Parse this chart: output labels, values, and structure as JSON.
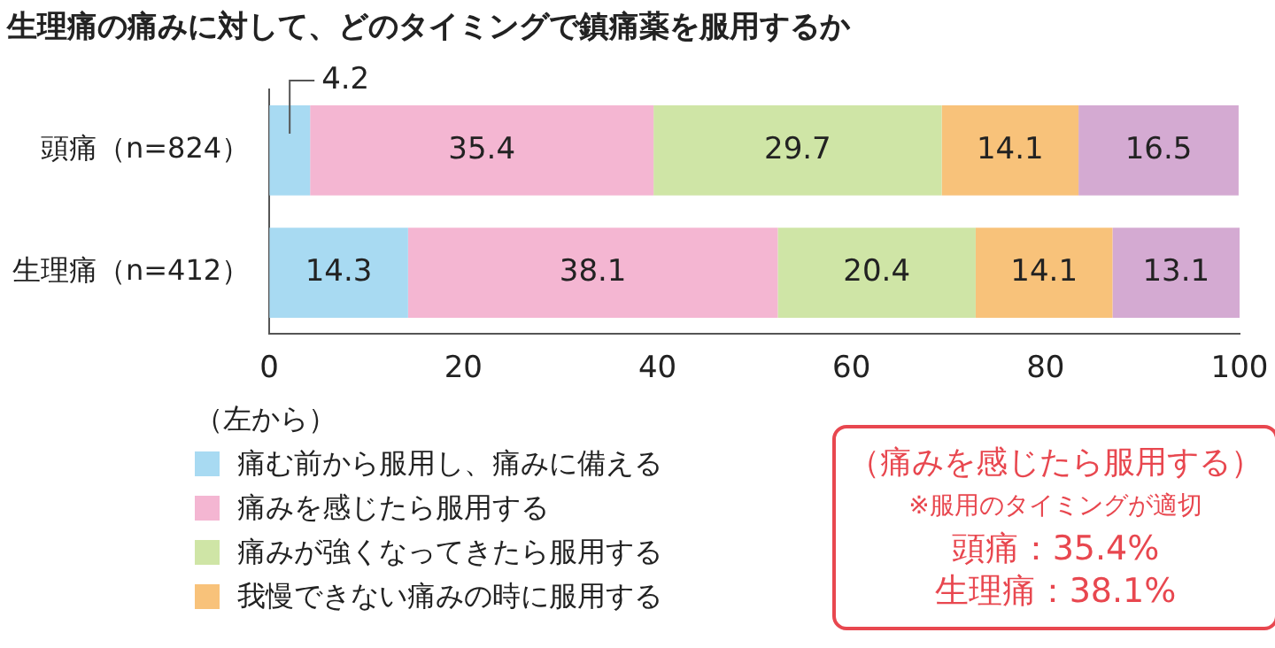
{
  "chart_data": {
    "type": "bar",
    "orientation": "horizontal",
    "stacked": true,
    "title": "生理痛の痛みに対して、どのタイミングで鎮痛薬を服用するか",
    "categories": [
      "頭痛（n=824）",
      "生理痛（n=412）"
    ],
    "series": [
      {
        "name": "痛む前から服用し、痛みに備える",
        "color": "#a8daf2",
        "values": [
          4.2,
          14.3
        ]
      },
      {
        "name": "痛みを感じたら服用する",
        "color": "#f4b6d2",
        "values": [
          35.4,
          38.1
        ]
      },
      {
        "name": "痛みが強くなってきたら服用する",
        "color": "#cfe5a6",
        "values": [
          29.7,
          20.4
        ]
      },
      {
        "name": "我慢できない痛みの時に服用する",
        "color": "#f8c27a",
        "values": [
          14.1,
          14.1
        ]
      },
      {
        "color": "#d4aad2",
        "values": [
          16.5,
          13.1
        ]
      }
    ],
    "xlim": [
      0,
      100
    ],
    "xticks": [
      0,
      20,
      40,
      60,
      80,
      100
    ],
    "data_labels": true,
    "legend": "bottom",
    "legend_title": "（左から）",
    "annotations": [
      "（痛みを感じたら服用する）",
      "※服用のタイミングが適切",
      "頭痛：35.4%",
      "生理痛：38.1%"
    ]
  }
}
